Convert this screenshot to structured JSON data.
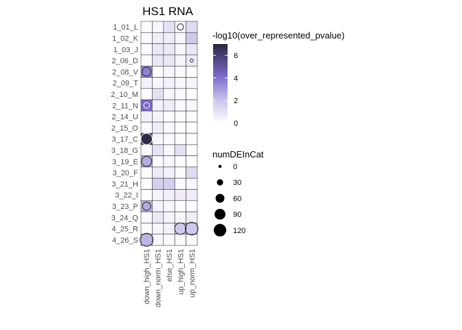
{
  "chart_data": {
    "type": "heatmap",
    "title": "HS1 RNA",
    "xlabel": "",
    "ylabel": "",
    "columns": [
      "down_high_HS1",
      "down_norm_HS1",
      "else_HS1",
      "up_high_HS1",
      "up_norm_HS1"
    ],
    "rows": [
      "1_01_L",
      "1_02_K",
      "1_03_J",
      "2_06_D",
      "2_08_V",
      "2_09_T",
      "2_10_M",
      "2_11_N",
      "2_14_U",
      "2_15_O",
      "3_17_C",
      "3_18_G",
      "3_19_E",
      "3_20_F",
      "3_21_H",
      "3_22_I",
      "3_23_P",
      "3_24_Q",
      "4_25_R",
      "4_26_S"
    ],
    "fill_values": [
      [
        0.1,
        0.3,
        1.0,
        0.3,
        1.2
      ],
      [
        0.2,
        0.6,
        0.6,
        0.3,
        1.8
      ],
      [
        0.2,
        0.8,
        0.7,
        0.3,
        0.8
      ],
      [
        0.1,
        0.8,
        0.8,
        0.4,
        0.7
      ],
      [
        3.6,
        0.1,
        0.3,
        0.2,
        0.1
      ],
      [
        0.5,
        0.3,
        0.5,
        0.3,
        0.4
      ],
      [
        0.1,
        1.0,
        0.3,
        0.2,
        0.1
      ],
      [
        4.2,
        0.5,
        0.6,
        0.2,
        0.3
      ],
      [
        0.5,
        0.4,
        0.1,
        0.1,
        0.1
      ],
      [
        0.1,
        0.6,
        0.2,
        0.1,
        0.1
      ],
      [
        6.8,
        0.3,
        0.2,
        0.1,
        0.1
      ],
      [
        0.2,
        0.9,
        0.3,
        1.0,
        0.1
      ],
      [
        2.6,
        0.2,
        0.3,
        0.1,
        0.1
      ],
      [
        0.1,
        0.7,
        0.5,
        0.2,
        1.2
      ],
      [
        0.1,
        1.6,
        1.6,
        0.2,
        0.3
      ],
      [
        0.1,
        0.4,
        0.5,
        0.6,
        0.6
      ],
      [
        2.6,
        0.4,
        0.3,
        0.1,
        0.1
      ],
      [
        0.2,
        0.7,
        0.4,
        0.3,
        0.6
      ],
      [
        0.1,
        0.3,
        0.5,
        1.8,
        1.8
      ],
      [
        2.4,
        0.3,
        0.1,
        0.2,
        0.2
      ]
    ],
    "point_values": [
      [
        0,
        0,
        0,
        30,
        0
      ],
      [
        0,
        0,
        0,
        0,
        0
      ],
      [
        0,
        0,
        0,
        0,
        0
      ],
      [
        0,
        0,
        0,
        0,
        5
      ],
      [
        60,
        0,
        0,
        0,
        0
      ],
      [
        0,
        0,
        0,
        0,
        0
      ],
      [
        0,
        0,
        0,
        0,
        0
      ],
      [
        25,
        0,
        0,
        0,
        0
      ],
      [
        0,
        0,
        0,
        0,
        0
      ],
      [
        0,
        0,
        0,
        0,
        0
      ],
      [
        100,
        0,
        0,
        0,
        0
      ],
      [
        0,
        0,
        0,
        0,
        0
      ],
      [
        75,
        0,
        0,
        0,
        0
      ],
      [
        0,
        0,
        0,
        0,
        0
      ],
      [
        0,
        0,
        0,
        0,
        0
      ],
      [
        0,
        0,
        0,
        0,
        0
      ],
      [
        50,
        0,
        0,
        0,
        0
      ],
      [
        0,
        0,
        0,
        0,
        0
      ],
      [
        0,
        0,
        0,
        100,
        125
      ],
      [
        130,
        0,
        0,
        0,
        0
      ]
    ],
    "fill_legend": {
      "title": "-log10(over_represented_pvalue)",
      "breaks": [
        0,
        2,
        4,
        6
      ],
      "range": [
        0,
        7
      ],
      "low_color": "#ffffff",
      "high_color": "#2b2541",
      "mid_color": "#7b68c8"
    },
    "size_legend": {
      "title": "numDEInCat",
      "breaks": [
        0,
        30,
        60,
        90,
        120
      ]
    },
    "grid": false,
    "legend_position": "right",
    "colors": {
      "cell_border": "#3a3a3a",
      "point_fill_dark": "#000000",
      "point_outline": "#2a2a2a"
    }
  }
}
